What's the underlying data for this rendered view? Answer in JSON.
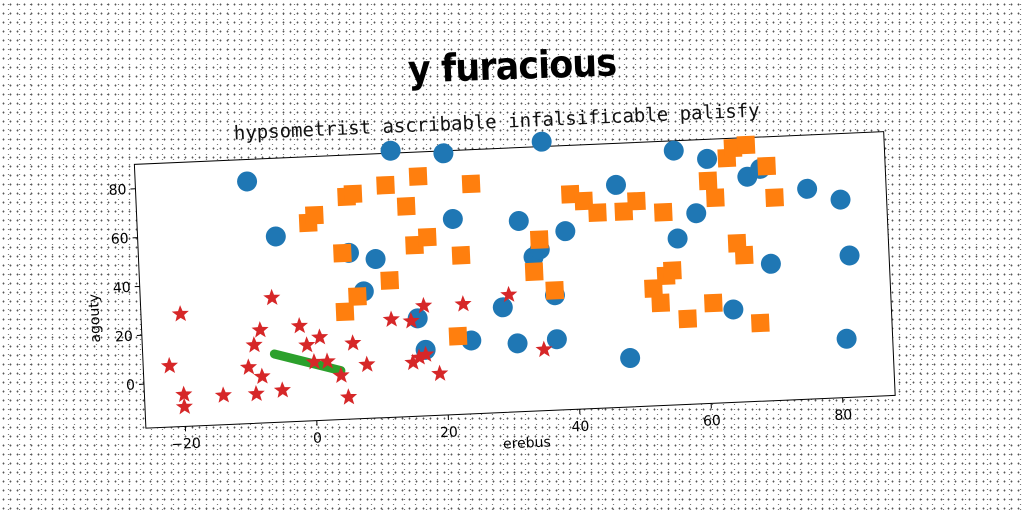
{
  "title": "y furacious",
  "chart_data": {
    "type": "scatter",
    "title": "hypsometrist ascribable infalsificable palisfy",
    "xlabel": "erebus",
    "ylabel": "agouty",
    "xlim": [
      -26,
      88
    ],
    "ylim": [
      -18,
      90
    ],
    "xticks": [
      -20,
      0,
      20,
      40,
      60,
      80
    ],
    "yticks": [
      0,
      20,
      40,
      60,
      80
    ],
    "grid": false,
    "colors": {
      "circles": "#1f77b4",
      "squares": "#ff7f0e",
      "line": "#2ca02c",
      "stars": "#d62728"
    },
    "series": [
      {
        "marker": "circle",
        "points": [
          [
            -9,
            81
          ],
          [
            13,
            91
          ],
          [
            21,
            89
          ],
          [
            36,
            92
          ],
          [
            -5,
            58
          ],
          [
            22,
            62
          ],
          [
            6,
            50
          ],
          [
            10,
            47
          ],
          [
            32,
            60
          ],
          [
            39,
            55
          ],
          [
            8,
            34
          ],
          [
            34,
            45
          ],
          [
            35,
            48
          ],
          [
            37,
            29
          ],
          [
            29,
            25
          ],
          [
            16,
            22
          ],
          [
            24,
            12
          ],
          [
            17,
            9
          ],
          [
            31,
            10
          ],
          [
            37,
            11
          ],
          [
            48,
            2
          ],
          [
            47,
            73
          ],
          [
            56,
            86
          ],
          [
            59,
            60
          ],
          [
            56,
            50
          ],
          [
            61,
            82
          ],
          [
            67,
            74
          ],
          [
            69,
            77
          ],
          [
            76,
            68
          ],
          [
            81,
            63
          ],
          [
            70,
            38
          ],
          [
            64,
            20
          ],
          [
            82,
            40
          ],
          [
            81,
            6
          ]
        ]
      },
      {
        "marker": "square",
        "points": [
          [
            0,
            63
          ],
          [
            1,
            66
          ],
          [
            6,
            73
          ],
          [
            7,
            74
          ],
          [
            12,
            77
          ],
          [
            15,
            68
          ],
          [
            17,
            80
          ],
          [
            25,
            76
          ],
          [
            5,
            50
          ],
          [
            16,
            52
          ],
          [
            18,
            55
          ],
          [
            23,
            47
          ],
          [
            12,
            38
          ],
          [
            7,
            32
          ],
          [
            5,
            26
          ],
          [
            22,
            14
          ],
          [
            34,
            39
          ],
          [
            35,
            52
          ],
          [
            37,
            31
          ],
          [
            40,
            70
          ],
          [
            42,
            67
          ],
          [
            44,
            62
          ],
          [
            48,
            62
          ],
          [
            50,
            66
          ],
          [
            54,
            61
          ],
          [
            52,
            30
          ],
          [
            53,
            24
          ],
          [
            54,
            35
          ],
          [
            55,
            37
          ],
          [
            57,
            17
          ],
          [
            61,
            23
          ],
          [
            61,
            73
          ],
          [
            62,
            66
          ],
          [
            64,
            82
          ],
          [
            65,
            86
          ],
          [
            67,
            87
          ],
          [
            70,
            78
          ],
          [
            71,
            65
          ],
          [
            65,
            47
          ],
          [
            66,
            42
          ],
          [
            68,
            14
          ]
        ]
      },
      {
        "marker": "line",
        "points": [
          [
            -6,
            10
          ],
          [
            4,
            2
          ]
        ]
      },
      {
        "marker": "star",
        "points": [
          [
            -22,
            7
          ],
          [
            -20,
            28
          ],
          [
            -20,
            -5
          ],
          [
            -20,
            -10
          ],
          [
            -14,
            -6
          ],
          [
            -10,
            5
          ],
          [
            -9,
            14
          ],
          [
            -8,
            20
          ],
          [
            -9,
            -6
          ],
          [
            -8,
            1
          ],
          [
            -6,
            33
          ],
          [
            -5,
            -5
          ],
          [
            -2,
            21
          ],
          [
            -1,
            13
          ],
          [
            0,
            6
          ],
          [
            1,
            16
          ],
          [
            2,
            6
          ],
          [
            4,
            0
          ],
          [
            5,
            -9
          ],
          [
            6,
            13
          ],
          [
            8,
            4
          ],
          [
            12,
            22
          ],
          [
            15,
            21
          ],
          [
            15,
            4
          ],
          [
            16,
            6
          ],
          [
            17,
            7
          ],
          [
            17,
            27
          ],
          [
            19,
            -1
          ],
          [
            23,
            27
          ],
          [
            30,
            30
          ],
          [
            35,
            7
          ]
        ]
      }
    ]
  }
}
